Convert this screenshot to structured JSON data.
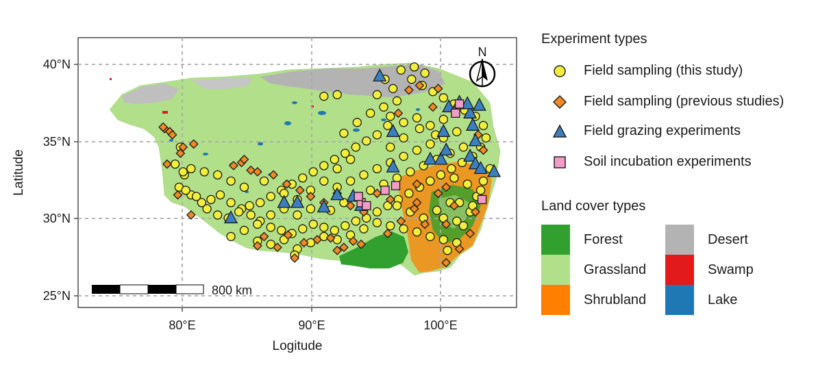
{
  "map": {
    "xlabel": "Logitude",
    "ylabel": "Latitude",
    "x_ticks": [
      "80°E",
      "90°E",
      "100°E"
    ],
    "y_ticks": [
      "40°N",
      "35°N",
      "30°N",
      "25°N"
    ],
    "x_tick_values": [
      80,
      90,
      100
    ],
    "y_tick_values": [
      40,
      35,
      30,
      25
    ],
    "xlim": [
      72.5,
      105.5
    ],
    "ylim": [
      24.2,
      41.7
    ],
    "grid": true,
    "grid_style": "dashed",
    "north_arrow_label": "N",
    "scale_bar_label": "800 km"
  },
  "legend": {
    "experiment_title": "Experiment types",
    "experiments": [
      {
        "label": "Field sampling (this study)",
        "shape": "circle",
        "color": "#f2ef3c"
      },
      {
        "label": "Field sampling (previous studies)",
        "shape": "diamond",
        "color": "#f08a24"
      },
      {
        "label": "Field grazing experiments",
        "shape": "triangle",
        "color": "#3b7fc0"
      },
      {
        "label": "Soil incubation experiments",
        "shape": "square",
        "color": "#f39cc8"
      }
    ],
    "landcover_title": "Land cover types",
    "landcover": [
      {
        "label": "Forest",
        "color": "#31a02e"
      },
      {
        "label": "Grassland",
        "color": "#b1df8a"
      },
      {
        "label": "Shrubland",
        "color": "#ff7f00"
      },
      {
        "label": "Desert",
        "color": "#b3b3b3"
      },
      {
        "label": "Swamp",
        "color": "#e31a1c"
      },
      {
        "label": "Lake",
        "color": "#1f77b4"
      }
    ]
  },
  "chart_data": {
    "type": "scatter",
    "series": [
      {
        "name": "Field sampling (this study)",
        "shape": "circle",
        "points": [
          [
            80.2,
            34.6
          ],
          [
            79.8,
            33.5
          ],
          [
            80.5,
            32.8
          ],
          [
            80.1,
            32.0
          ],
          [
            81.0,
            31.5
          ],
          [
            81.8,
            31.0
          ],
          [
            82.5,
            31.2
          ],
          [
            83.2,
            31.5
          ],
          [
            84.0,
            31.0
          ],
          [
            84.8,
            30.6
          ],
          [
            85.5,
            30.2
          ],
          [
            86.2,
            29.8
          ],
          [
            87.0,
            29.4
          ],
          [
            87.8,
            29.2
          ],
          [
            88.6,
            29.0
          ],
          [
            89.4,
            29.3
          ],
          [
            90.2,
            29.6
          ],
          [
            91.0,
            29.4
          ],
          [
            91.8,
            29.2
          ],
          [
            92.6,
            29.5
          ],
          [
            93.4,
            29.8
          ],
          [
            94.2,
            30.0
          ],
          [
            95.0,
            30.4
          ],
          [
            95.8,
            30.8
          ],
          [
            96.6,
            31.2
          ],
          [
            97.4,
            31.6
          ],
          [
            98.2,
            32.0
          ],
          [
            99.0,
            32.4
          ],
          [
            99.8,
            32.8
          ],
          [
            100.6,
            33.2
          ],
          [
            101.4,
            33.6
          ],
          [
            102.2,
            34.0
          ],
          [
            102.8,
            34.6
          ],
          [
            103.2,
            35.2
          ],
          [
            103.0,
            36.0
          ],
          [
            102.4,
            36.6
          ],
          [
            101.6,
            37.0
          ],
          [
            100.8,
            37.4
          ],
          [
            100.0,
            37.8
          ],
          [
            99.2,
            38.2
          ],
          [
            98.4,
            38.6
          ],
          [
            97.6,
            39.0
          ],
          [
            96.8,
            39.6
          ],
          [
            97.8,
            39.8
          ],
          [
            98.6,
            39.4
          ],
          [
            95.8,
            36.0
          ],
          [
            95.0,
            35.4
          ],
          [
            94.2,
            35.0
          ],
          [
            93.4,
            34.6
          ],
          [
            92.6,
            34.2
          ],
          [
            91.8,
            33.8
          ],
          [
            91.0,
            33.4
          ],
          [
            90.2,
            33.0
          ],
          [
            89.4,
            32.6
          ],
          [
            88.6,
            32.2
          ],
          [
            87.8,
            31.8
          ],
          [
            87.0,
            31.4
          ],
          [
            86.2,
            31.0
          ],
          [
            85.4,
            30.8
          ],
          [
            84.6,
            30.4
          ],
          [
            83.8,
            30.0
          ],
          [
            83.0,
            30.2
          ],
          [
            82.2,
            30.6
          ],
          [
            81.4,
            31.4
          ],
          [
            80.6,
            31.8
          ],
          [
            86.0,
            28.5
          ],
          [
            87.0,
            28.3
          ],
          [
            88.0,
            28.6
          ],
          [
            89.0,
            28.0
          ],
          [
            90.0,
            28.4
          ],
          [
            91.0,
            28.8
          ],
          [
            92.0,
            28.6
          ],
          [
            93.0,
            28.9
          ],
          [
            94.0,
            29.3
          ],
          [
            95.0,
            29.7
          ],
          [
            96.0,
            29.5
          ],
          [
            97.0,
            29.3
          ],
          [
            98.0,
            29.1
          ],
          [
            99.0,
            28.8
          ],
          [
            100.0,
            28.6
          ],
          [
            101.0,
            28.4
          ],
          [
            101.5,
            29.5
          ],
          [
            102.0,
            30.4
          ],
          [
            102.5,
            31.4
          ],
          [
            103.0,
            32.4
          ],
          [
            103.5,
            33.2
          ],
          [
            92.0,
            32.0
          ],
          [
            93.0,
            32.4
          ],
          [
            94.0,
            32.8
          ],
          [
            95.0,
            33.2
          ],
          [
            96.0,
            33.6
          ],
          [
            97.0,
            34.0
          ],
          [
            98.0,
            34.4
          ],
          [
            99.0,
            34.8
          ],
          [
            100.0,
            35.2
          ],
          [
            101.0,
            35.6
          ],
          [
            92.5,
            35.5
          ],
          [
            93.5,
            36.2
          ],
          [
            94.5,
            36.8
          ],
          [
            95.5,
            37.2
          ],
          [
            96.5,
            37.6
          ],
          [
            91.0,
            37.9
          ],
          [
            92.0,
            38.0
          ],
          [
            98.0,
            36.5
          ],
          [
            99.0,
            36.0
          ],
          [
            100.0,
            36.4
          ],
          [
            97.0,
            35.2
          ],
          [
            96.0,
            34.6
          ],
          [
            93.0,
            33.8
          ],
          [
            92.0,
            33.2
          ],
          [
            91.0,
            32.4
          ],
          [
            90.0,
            31.8
          ],
          [
            89.0,
            31.2
          ],
          [
            88.0,
            30.6
          ],
          [
            87.0,
            30.2
          ],
          [
            86.0,
            29.6
          ],
          [
            85.0,
            29.2
          ],
          [
            84.0,
            28.8
          ],
          [
            91.5,
            30.5
          ],
          [
            92.5,
            31.0
          ],
          [
            93.5,
            31.4
          ],
          [
            94.5,
            31.8
          ],
          [
            95.5,
            32.2
          ],
          [
            96.5,
            32.6
          ],
          [
            97.5,
            33.0
          ],
          [
            98.5,
            33.4
          ],
          [
            99.5,
            33.8
          ],
          [
            100.5,
            34.2
          ],
          [
            101.5,
            34.6
          ],
          [
            100.5,
            31.0
          ],
          [
            99.5,
            30.5
          ],
          [
            98.5,
            30.0
          ],
          [
            97.5,
            30.4
          ],
          [
            96.5,
            30.8
          ],
          [
            100.3,
            27.9
          ],
          [
            101.0,
            29.8
          ],
          [
            100.0,
            30.0
          ],
          [
            89.0,
            30.2
          ],
          [
            90.0,
            30.6
          ],
          [
            88.0,
            31.6
          ],
          [
            86.5,
            32.4
          ],
          [
            85.0,
            32.0
          ],
          [
            84.0,
            32.4
          ],
          [
            83.0,
            32.8
          ],
          [
            82.0,
            33.0
          ],
          [
            81.0,
            33.2
          ],
          [
            80.4,
            33.0
          ],
          [
            95.6,
            39.0
          ],
          [
            96.2,
            38.4
          ],
          [
            95.0,
            38.0
          ],
          [
            96.0,
            36.6
          ],
          [
            97.0,
            36.2
          ],
          [
            98.2,
            35.8
          ],
          [
            99.4,
            35.4
          ],
          [
            100.8,
            32.6
          ],
          [
            101.8,
            32.2
          ],
          [
            102.8,
            31.8
          ],
          [
            101.2,
            31.0
          ],
          [
            102.2,
            30.8
          ],
          [
            88.8,
            27.6
          ]
        ]
      },
      {
        "name": "Field sampling (previous studies)",
        "shape": "diamond",
        "points": [
          [
            79.0,
            35.8
          ],
          [
            79.4,
            35.6
          ],
          [
            78.9,
            35.9
          ],
          [
            79.6,
            35.4
          ],
          [
            80.4,
            34.6
          ],
          [
            80.2,
            34.2
          ],
          [
            81.2,
            34.8
          ],
          [
            79.2,
            33.5
          ],
          [
            80.0,
            31.5
          ],
          [
            81.0,
            30.2
          ],
          [
            84.8,
            33.6
          ],
          [
            85.0,
            33.8
          ],
          [
            84.2,
            33.4
          ],
          [
            85.5,
            33.1
          ],
          [
            86.0,
            28.2
          ],
          [
            86.5,
            28.8
          ],
          [
            87.5,
            28.1
          ],
          [
            88.3,
            28.9
          ],
          [
            88.8,
            27.4
          ],
          [
            89.5,
            28.4
          ],
          [
            90.5,
            28.6
          ],
          [
            91.5,
            28.7
          ],
          [
            92.0,
            27.9
          ],
          [
            92.5,
            28.1
          ],
          [
            93.2,
            28.5
          ],
          [
            93.8,
            28.3
          ],
          [
            95.8,
            29.0
          ],
          [
            96.8,
            29.8
          ],
          [
            97.8,
            30.6
          ],
          [
            98.0,
            31.0
          ],
          [
            98.6,
            29.6
          ],
          [
            99.6,
            31.6
          ],
          [
            100.2,
            32.0
          ],
          [
            100.2,
            27.1
          ],
          [
            101.2,
            28.0
          ],
          [
            102.0,
            29.0
          ],
          [
            102.4,
            30.4
          ],
          [
            100.8,
            30.8
          ],
          [
            100.2,
            29.6
          ],
          [
            98.0,
            32.2
          ],
          [
            96.0,
            31.2
          ],
          [
            95.0,
            31.6
          ],
          [
            94.0,
            30.4
          ],
          [
            93.0,
            30.8
          ],
          [
            92.0,
            31.6
          ],
          [
            91.0,
            31.0
          ],
          [
            90.0,
            31.4
          ],
          [
            89.2,
            31.8
          ],
          [
            88.2,
            32.2
          ],
          [
            87.2,
            32.8
          ],
          [
            86.0,
            33.0
          ],
          [
            97.4,
            38.3
          ],
          [
            98.2,
            38.6
          ],
          [
            99.6,
            38.4
          ],
          [
            100.8,
            37.0
          ],
          [
            102.6,
            35.4
          ],
          [
            103.0,
            34.4
          ],
          [
            99.2,
            37.2
          ],
          [
            96.6,
            36.8
          ]
        ]
      },
      {
        "name": "Field grazing experiments",
        "shape": "triangle",
        "points": [
          [
            95.2,
            39.2
          ],
          [
            96.2,
            35.6
          ],
          [
            96.2,
            33.3
          ],
          [
            93.8,
            30.8
          ],
          [
            93.2,
            31.4
          ],
          [
            92.0,
            31.5
          ],
          [
            91.0,
            30.7
          ],
          [
            89.0,
            31.0
          ],
          [
            88.0,
            31.0
          ],
          [
            84.0,
            30.0
          ],
          [
            99.0,
            33.8
          ],
          [
            99.8,
            33.8
          ],
          [
            100.2,
            34.4
          ],
          [
            100.0,
            35.6
          ],
          [
            100.4,
            37.2
          ],
          [
            101.2,
            37.5
          ],
          [
            102.0,
            36.8
          ],
          [
            102.2,
            36.0
          ],
          [
            102.4,
            35.0
          ],
          [
            102.0,
            34.0
          ],
          [
            102.4,
            33.5
          ],
          [
            102.8,
            33.2
          ],
          [
            103.8,
            33.0
          ],
          [
            102.7,
            37.3
          ],
          [
            101.8,
            37.4
          ]
        ]
      },
      {
        "name": "Soil incubation experiments",
        "shape": "square",
        "points": [
          [
            93.8,
            31.0
          ],
          [
            94.2,
            30.8
          ],
          [
            93.6,
            31.4
          ],
          [
            95.6,
            31.8
          ],
          [
            96.4,
            32.1
          ],
          [
            100.9,
            36.8
          ],
          [
            101.2,
            37.4
          ],
          [
            102.9,
            31.2
          ]
        ]
      }
    ]
  }
}
